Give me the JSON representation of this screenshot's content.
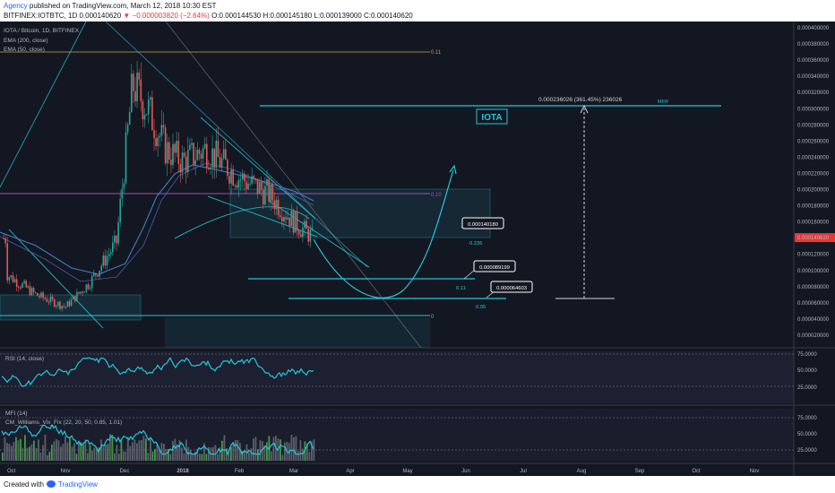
{
  "header": {
    "author": "Agency",
    "published": "published on TradingView.com, March 12, 2018 10:30 EST",
    "symbol_line": "BITFINEX:IOTBTC, 1D 0.000140620",
    "change": "▼ −0.000003820 (−2.64%)",
    "ohlc": "O:0.000144530 H:0.000145180 L:0.000139000 C:0.000140620"
  },
  "footer": {
    "created_with": "Created with",
    "brand": "TradingView"
  },
  "legend": {
    "title": "IOTA / Bitcoin, 1D, BITFINEX",
    "ema200": "EMA (200, close)",
    "ema50": "EMA (50, close)"
  },
  "annotations": {
    "badge": "IOTA",
    "target": "0.000236026 (361.45%) 236026",
    "mfr": "MFR",
    "label_1": "0.000140180",
    "label_2": "0.000089199",
    "label_3": "0.000064603",
    "fib_0236": "0.236",
    "fib_011": "0.11",
    "fib_005": "0.05",
    "fib_0": "0",
    "fib_top": "0.11",
    "fib_mid": "0.10"
  },
  "colors": {
    "background": "#131722",
    "up": "#26a69a",
    "down": "#ef5350",
    "cyan": "#26c6da",
    "ema": "#3d7ec7",
    "magenta": "#9c27b0",
    "accent_red": "#e53935",
    "link": "#2962ff"
  },
  "chart_data": {
    "type": "candlestick",
    "title": "IOTA / Bitcoin, 1D, BITFINEX",
    "current_price": "0.000140620",
    "x_axis": {
      "ticks": [
        "Oct",
        "Nov",
        "Dec",
        "2018",
        "Feb",
        "Mar",
        "Apr",
        "May",
        "Jun",
        "Jul",
        "Aug",
        "Sep",
        "Oct",
        "Nov"
      ]
    },
    "y_axis": {
      "range": [
        2e-05,
        0.0004
      ],
      "ticks": [
        "0.000400000",
        "0.000380000",
        "0.000360000",
        "0.000340000",
        "0.000320000",
        "0.000300000",
        "0.000280000",
        "0.000260000",
        "0.000240000",
        "0.000220000",
        "0.000200000",
        "0.000180000",
        "0.000160000",
        "0.000140620",
        "0.000120000",
        "0.000100000",
        "0.000080000",
        "0.000060000",
        "0.000040000",
        "0.000020000"
      ]
    },
    "price_series": [
      {
        "month": "Oct",
        "close": 9.5e-05
      },
      {
        "month": "Nov",
        "close": 5.5e-05
      },
      {
        "month": "Dec",
        "close": 0.00033
      },
      {
        "month": "2018",
        "close": 0.00028
      },
      {
        "month": "Feb",
        "close": 0.000215
      },
      {
        "month": "Mar",
        "close": 0.00014
      }
    ],
    "indicators": [
      {
        "name": "RSI (14, close)",
        "levels": [
          "75.0000",
          "50.0000",
          "25.0000"
        ]
      },
      {
        "name": "MFI (14)",
        "levels": [
          "75.0000",
          "50.0000",
          "25.0000"
        ]
      },
      {
        "name": "CM_Williams_Vix_Fix (22, 20, 50, 0.85, 1.01)"
      }
    ]
  }
}
